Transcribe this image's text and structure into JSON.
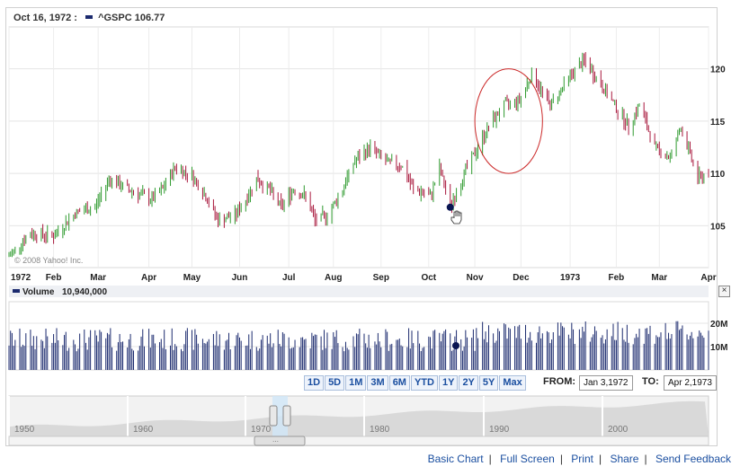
{
  "header": {
    "date": "Oct 16, 1972 :",
    "symbol": "^GSPC",
    "value": "106.77"
  },
  "watermark": "© 2008 Yahoo! Inc.",
  "chart_data": {
    "type": "candlestick",
    "series": [
      {
        "name": "^GSPC"
      }
    ],
    "x_start": "1972-01-03",
    "x_end": "1973-04-02",
    "ylim": [
      101,
      124
    ],
    "yticks": [
      105,
      110,
      115,
      120
    ],
    "grid": true,
    "points": [
      [
        "1972-01-03",
        102.1
      ],
      [
        "1972-01-17",
        104.3
      ],
      [
        "1972-02-01",
        104.0
      ],
      [
        "1972-02-15",
        106.2
      ],
      [
        "1972-02-28",
        106.8
      ],
      [
        "1972-03-08",
        109.5
      ],
      [
        "1972-03-20",
        108.5
      ],
      [
        "1972-04-05",
        107.5
      ],
      [
        "1972-04-12",
        108.5
      ],
      [
        "1972-04-20",
        110.6
      ],
      [
        "1972-05-01",
        109.8
      ],
      [
        "1972-05-10",
        107.8
      ],
      [
        "1972-05-18",
        105.5
      ],
      [
        "1972-05-29",
        106.0
      ],
      [
        "1972-06-05",
        107.5
      ],
      [
        "1972-06-12",
        109.5
      ],
      [
        "1972-06-20",
        108.5
      ],
      [
        "1972-06-28",
        106.8
      ],
      [
        "1972-07-06",
        108.5
      ],
      [
        "1972-07-14",
        107.8
      ],
      [
        "1972-07-20",
        105.5
      ],
      [
        "1972-07-28",
        106.0
      ],
      [
        "1972-08-07",
        108.5
      ],
      [
        "1972-08-14",
        111.0
      ],
      [
        "1972-08-25",
        112.5
      ],
      [
        "1972-09-05",
        111.0
      ],
      [
        "1972-09-14",
        110.8
      ],
      [
        "1972-09-22",
        108.5
      ],
      [
        "1972-10-03",
        107.8
      ],
      [
        "1972-10-09",
        110.5
      ],
      [
        "1972-10-16",
        106.8
      ],
      [
        "1972-10-25",
        110.0
      ],
      [
        "1972-11-03",
        112.5
      ],
      [
        "1972-11-10",
        114.5
      ],
      [
        "1972-11-20",
        116.5
      ],
      [
        "1972-11-30",
        117.0
      ],
      [
        "1972-12-08",
        119.5
      ],
      [
        "1972-12-20",
        116.5
      ],
      [
        "1973-01-03",
        119.5
      ],
      [
        "1973-01-11",
        120.8
      ],
      [
        "1973-01-22",
        118.5
      ],
      [
        "1973-01-31",
        116.5
      ],
      [
        "1973-02-09",
        114.5
      ],
      [
        "1973-02-16",
        116.5
      ],
      [
        "1973-02-26",
        112.5
      ],
      [
        "1973-03-08",
        111.5
      ],
      [
        "1973-03-15",
        114.5
      ],
      [
        "1973-03-26",
        109.5
      ],
      [
        "1973-04-02",
        110.0
      ]
    ],
    "x_tick_labels": [
      "1972",
      "Feb",
      "Mar",
      "Apr",
      "May",
      "Jun",
      "Jul",
      "Aug",
      "Sep",
      "Oct",
      "Nov",
      "Dec",
      "1973",
      "Feb",
      "Mar",
      "Apr"
    ],
    "annotation": {
      "type": "ellipse",
      "from": "1972-11-01",
      "to": "1972-12-15"
    }
  },
  "volume": {
    "label": "Volume",
    "value": "10,940,000",
    "yticks": [
      "20M",
      "10M"
    ]
  },
  "ranges": [
    "1D",
    "5D",
    "1M",
    "3M",
    "6M",
    "YTD",
    "1Y",
    "2Y",
    "5Y",
    "Max"
  ],
  "from_label": "FROM:",
  "to_label": "TO:",
  "from_date": "Jan 3,1972",
  "to_date": "Apr 2,1973",
  "overview": {
    "decades": [
      "1950",
      "1960",
      "1970",
      "1980",
      "1990",
      "2000"
    ]
  },
  "footer": {
    "links": [
      "Basic Chart",
      "Full Screen",
      "Print",
      "Share",
      "Send Feedback"
    ]
  },
  "colors": {
    "up": "#2e9a2e",
    "down": "#a8173c",
    "annotation": "#cc2a2a",
    "line_series": "#1b2a6e",
    "accent": "#1b4fa0"
  },
  "close_symbol": "×"
}
